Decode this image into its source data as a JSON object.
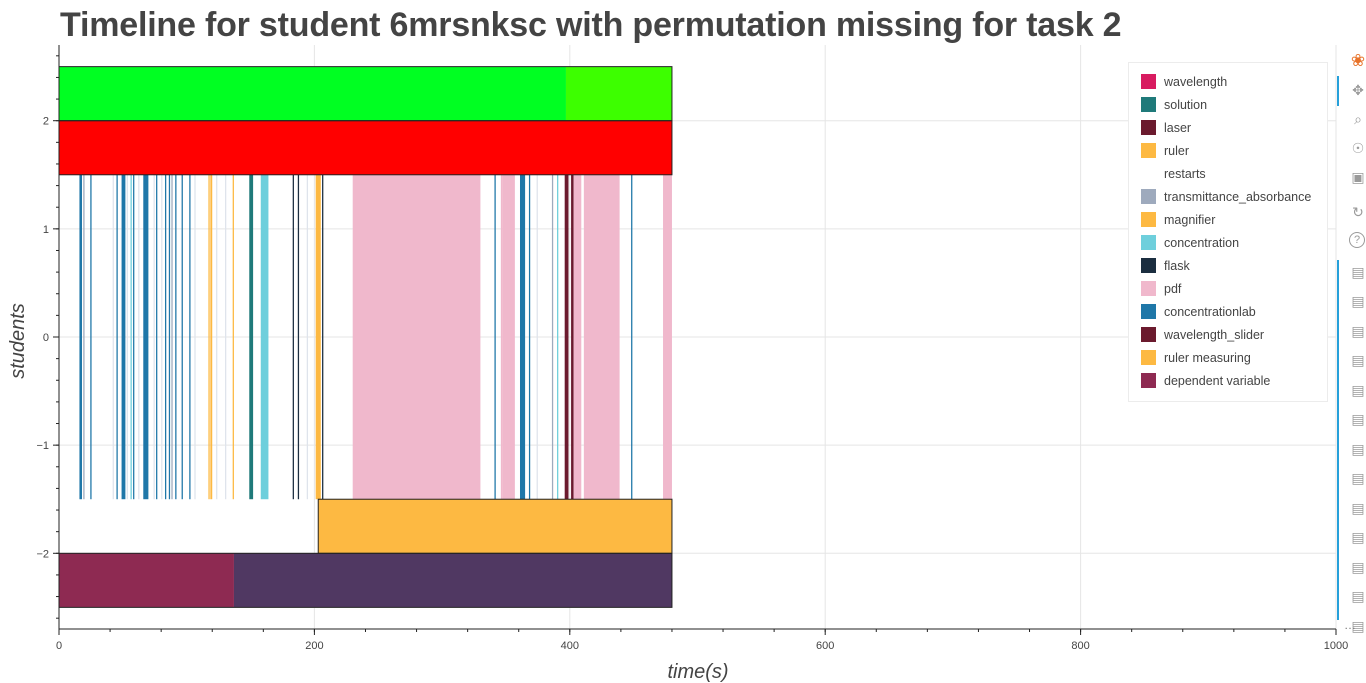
{
  "title": "Timeline for student 6mrsnksc with permutation missing for task 2",
  "chart_data": {
    "type": "bar",
    "orientation": "horizontal-timeline",
    "xlabel": "time(s)",
    "ylabel": "students",
    "xlim": [
      0,
      1000
    ],
    "ylim": [
      -2.7,
      2.7
    ],
    "x_ticks": [
      0,
      200,
      400,
      600,
      800,
      1000
    ],
    "y_ticks": [
      -2,
      -1,
      0,
      1,
      2
    ],
    "y_tick_labels": [
      "−2",
      "−1",
      "0",
      "1",
      "2"
    ],
    "grid": true,
    "legend_position": "top-right",
    "legend": [
      {
        "name": "wavelength",
        "color": "#d81b60"
      },
      {
        "name": "solution",
        "color": "#1f7a7a"
      },
      {
        "name": "laser",
        "color": "#6b1a2e"
      },
      {
        "name": "ruler",
        "color": "#fdb942"
      },
      {
        "name": "restarts",
        "color": "#ffffff"
      },
      {
        "name": "transmittance_absorbance",
        "color": "#9eaabd"
      },
      {
        "name": "magnifier",
        "color": "#fdb942"
      },
      {
        "name": "concentration",
        "color": "#6ecfdc"
      },
      {
        "name": "flask",
        "color": "#1b2e40"
      },
      {
        "name": "pdf",
        "color": "#f0b8cc"
      },
      {
        "name": "concentrationlab",
        "color": "#1f77a8"
      },
      {
        "name": "wavelength_slider",
        "color": "#6b1a2e"
      },
      {
        "name": "ruler measuring",
        "color": "#fdb942"
      },
      {
        "name": "dependent variable",
        "color": "#8e2a52"
      }
    ],
    "bands": [
      {
        "y_min": 2.0,
        "y_max": 2.5,
        "segments": [
          {
            "start": 0,
            "end": 397,
            "color": "#00ff22"
          },
          {
            "start": 397,
            "end": 480,
            "color": "#3dff00"
          }
        ]
      },
      {
        "y_min": 1.5,
        "y_max": 2.0,
        "segments": [
          {
            "start": 0,
            "end": 480,
            "color": "#ff0000"
          }
        ]
      },
      {
        "y_min": -2.0,
        "y_max": -1.5,
        "segments": [
          {
            "start": 203,
            "end": 480,
            "color": "#fdb942"
          }
        ]
      },
      {
        "y_min": -2.5,
        "y_max": -2.0,
        "segments": [
          {
            "start": 0,
            "end": 137,
            "color": "#8e2a52"
          },
          {
            "start": 137,
            "end": 480,
            "color": "#503862"
          }
        ]
      }
    ],
    "events_band": {
      "y_min": -1.5,
      "y_max": 1.5,
      "events": [
        {
          "start": 16,
          "end": 18,
          "color": "#1f77a8"
        },
        {
          "start": 19,
          "end": 20,
          "color": "#9eaabd"
        },
        {
          "start": 24.5,
          "end": 25.5,
          "color": "#1f77a8"
        },
        {
          "start": 42,
          "end": 43,
          "color": "#dfe4ec"
        },
        {
          "start": 45,
          "end": 46,
          "color": "#1f77a8"
        },
        {
          "start": 49,
          "end": 52,
          "color": "#1f77a8"
        },
        {
          "start": 53,
          "end": 54,
          "color": "#dfe4ec"
        },
        {
          "start": 56,
          "end": 57,
          "color": "#6ecfdc"
        },
        {
          "start": 58,
          "end": 59,
          "color": "#1f77a8"
        },
        {
          "start": 62,
          "end": 63,
          "color": "#dfe4ec"
        },
        {
          "start": 66,
          "end": 70,
          "color": "#1f77a8"
        },
        {
          "start": 74,
          "end": 75,
          "color": "#dfe4ec"
        },
        {
          "start": 76,
          "end": 77,
          "color": "#1f77a8"
        },
        {
          "start": 80,
          "end": 81,
          "color": "#dfe4ec"
        },
        {
          "start": 83,
          "end": 84,
          "color": "#1f77a8"
        },
        {
          "start": 86,
          "end": 87,
          "color": "#1f77a8"
        },
        {
          "start": 88,
          "end": 89,
          "color": "#9eaabd"
        },
        {
          "start": 91,
          "end": 92,
          "color": "#1f77a8"
        },
        {
          "start": 96,
          "end": 97,
          "color": "#1f77a8"
        },
        {
          "start": 102,
          "end": 103,
          "color": "#1f77a8"
        },
        {
          "start": 106,
          "end": 107,
          "color": "#dfe4ec"
        },
        {
          "start": 117,
          "end": 118,
          "color": "#fdb942"
        },
        {
          "start": 118.5,
          "end": 120,
          "color": "#fdb942"
        },
        {
          "start": 123,
          "end": 124,
          "color": "#dfe4ec"
        },
        {
          "start": 130,
          "end": 131,
          "color": "#dfe4ec"
        },
        {
          "start": 136,
          "end": 137,
          "color": "#fdb942"
        },
        {
          "start": 149,
          "end": 152,
          "color": "#1f7a7a"
        },
        {
          "start": 158,
          "end": 164,
          "color": "#6ecfdc"
        },
        {
          "start": 183,
          "end": 184,
          "color": "#1b2e40"
        },
        {
          "start": 187,
          "end": 188,
          "color": "#1b2e40"
        },
        {
          "start": 194,
          "end": 195,
          "color": "#dfe4ec"
        },
        {
          "start": 201,
          "end": 205,
          "color": "#fdb942"
        },
        {
          "start": 206,
          "end": 207,
          "color": "#1b2e40"
        },
        {
          "start": 230,
          "end": 330,
          "color": "#f0b8cc"
        },
        {
          "start": 341,
          "end": 342,
          "color": "#1f77a8"
        },
        {
          "start": 346,
          "end": 347,
          "color": "#f0b8cc"
        },
        {
          "start": 347,
          "end": 357,
          "color": "#f0b8cc"
        },
        {
          "start": 361,
          "end": 365,
          "color": "#1f77a8"
        },
        {
          "start": 368,
          "end": 369,
          "color": "#1f77a8"
        },
        {
          "start": 374,
          "end": 375,
          "color": "#dfe4ec"
        },
        {
          "start": 386,
          "end": 387,
          "color": "#9eaabd"
        },
        {
          "start": 390,
          "end": 391,
          "color": "#6ecfdc"
        },
        {
          "start": 396,
          "end": 399,
          "color": "#6b1a2e"
        },
        {
          "start": 401,
          "end": 403,
          "color": "#6b1a2e"
        },
        {
          "start": 403,
          "end": 409,
          "color": "#f0b8cc"
        },
        {
          "start": 411,
          "end": 439,
          "color": "#f0b8cc"
        },
        {
          "start": 448,
          "end": 449,
          "color": "#1f77a8"
        },
        {
          "start": 473,
          "end": 480,
          "color": "#f0b8cc"
        }
      ]
    }
  },
  "toolbar": {
    "tools": [
      "bokeh-logo-icon",
      "pan-icon",
      "box-zoom-icon",
      "wheel-zoom-icon",
      "save-icon",
      "reset-icon",
      "help-icon",
      "hover-icon",
      "hover-icon",
      "hover-icon",
      "hover-icon",
      "hover-icon",
      "hover-icon",
      "hover-icon",
      "hover-icon",
      "hover-icon",
      "hover-icon",
      "hover-icon",
      "hover-icon",
      "hover-icon"
    ],
    "more_label": "…"
  }
}
